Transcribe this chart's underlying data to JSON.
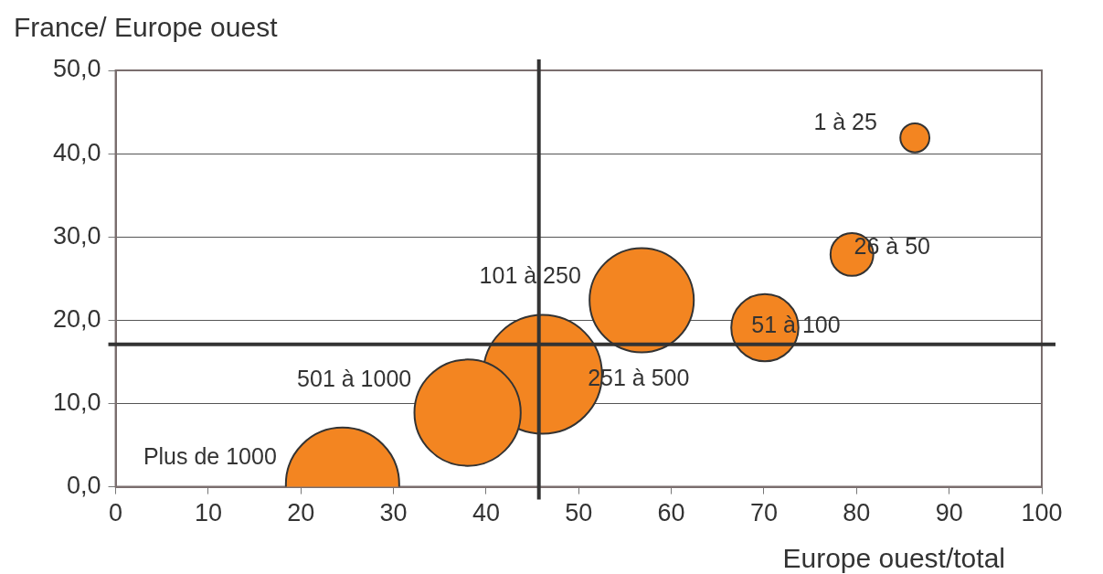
{
  "chart_data": {
    "type": "bubble",
    "xlabel": "Europe ouest/total",
    "ylabel": "France/ Europe ouest",
    "xlim": [
      0,
      100
    ],
    "xticks": [
      0,
      10,
      20,
      30,
      40,
      50,
      60,
      70,
      80,
      90,
      100
    ],
    "ylim": [
      0,
      50
    ],
    "yticks": [
      {
        "value": 0,
        "label": "0,0"
      },
      {
        "value": 10,
        "label": "10,0"
      },
      {
        "value": 20,
        "label": "20,0"
      },
      {
        "value": 30,
        "label": "30,0"
      },
      {
        "value": 40,
        "label": "40,0"
      },
      {
        "value": 50,
        "label": "50,0"
      }
    ],
    "grid": "y",
    "legend": false,
    "series": [
      {
        "color": "#f38521",
        "x": [
          86.3,
          79.5,
          70.1,
          56.8,
          46.1,
          38.0,
          24.5
        ],
        "values": [
          41.9,
          27.9,
          19.1,
          22.4,
          13.5,
          8.9,
          0.3
        ],
        "sizes": [
          0.06,
          0.13,
          0.32,
          0.77,
          1,
          0.8,
          0.91
        ]
      }
    ],
    "ref_lines": [
      {
        "axis": "x",
        "value": 45.7,
        "color": "#333333"
      },
      {
        "axis": "y",
        "value": 17.1,
        "color": "#333333"
      }
    ],
    "annotations": [
      {
        "text": "1 à 25",
        "x": 86.3,
        "y": 41.9
      },
      {
        "text": "26 à 50",
        "x": 79.5,
        "y": 27.9
      },
      {
        "text": "51 à 100",
        "x": 70.1,
        "y": 19.1
      },
      {
        "text": "101 à 250",
        "x": 56.8,
        "y": 22.4
      },
      {
        "text": "251 à 500",
        "x": 46.1,
        "y": 13.5
      },
      {
        "text": "501 à 1000",
        "x": 38.0,
        "y": 8.9
      },
      {
        "text": "Plus de 1000",
        "x": 24.5,
        "y": 0.3
      }
    ]
  }
}
